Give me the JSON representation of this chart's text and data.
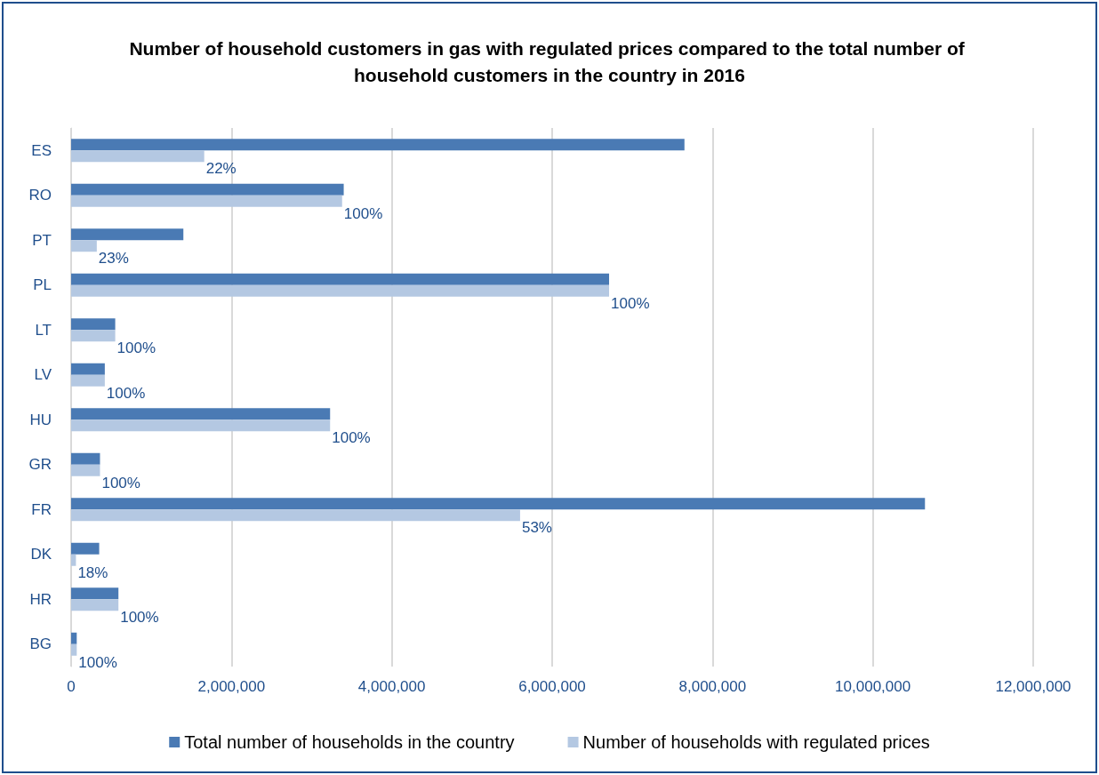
{
  "chart_data": {
    "type": "bar",
    "orientation": "horizontal",
    "title": "Number of household customers in gas with regulated prices compared to the total number of household customers in the country in 2016",
    "categories": [
      "ES",
      "RO",
      "PT",
      "PL",
      "LT",
      "LV",
      "HU",
      "GR",
      "FR",
      "DK",
      "HR",
      "BG"
    ],
    "series": [
      {
        "name": "Total number of households in the country",
        "color": "#4a7ab4",
        "values": [
          7650000,
          3400000,
          1400000,
          6710000,
          550000,
          420000,
          3230000,
          360000,
          10650000,
          350000,
          590000,
          70000
        ]
      },
      {
        "name": "Number of households with regulated prices",
        "color": "#b4c8e2",
        "values": [
          1660000,
          3380000,
          320000,
          6710000,
          550000,
          420000,
          3230000,
          360000,
          5600000,
          60000,
          590000,
          70000
        ]
      }
    ],
    "annotations": [
      {
        "text": "22%",
        "x": 1660000,
        "y": "ES"
      },
      {
        "text": "100%",
        "x": 3380000,
        "y": "RO"
      },
      {
        "text": "23%",
        "x": 320000,
        "y": "PT"
      },
      {
        "text": "100%",
        "x": 6710000,
        "y": "PL"
      },
      {
        "text": "100%",
        "x": 550000,
        "y": "LT"
      },
      {
        "text": "100%",
        "x": 420000,
        "y": "LV"
      },
      {
        "text": "100%",
        "x": 3230000,
        "y": "HU"
      },
      {
        "text": "100%",
        "x": 360000,
        "y": "GR"
      },
      {
        "text": "53%",
        "x": 5600000,
        "y": "FR"
      },
      {
        "text": "18%",
        "x": 60000,
        "y": "DK"
      },
      {
        "text": "100%",
        "x": 590000,
        "y": "HR"
      },
      {
        "text": "100%",
        "x": 70000,
        "y": "BG"
      }
    ],
    "xlim": [
      0,
      12000000
    ],
    "xticks": [
      0,
      {
        "value": 2000000,
        "label": "2,000,000"
      },
      {
        "value": 4000000,
        "label": "4,000,000"
      },
      {
        "value": 6000000,
        "label": "6,000,000"
      },
      {
        "value": 8000000,
        "label": "8,000,000"
      },
      {
        "value": 10000000,
        "label": "10,000,000"
      },
      {
        "value": 12000000,
        "label": "12,000,000"
      }
    ],
    "grid": "x",
    "legend": "bottom"
  }
}
